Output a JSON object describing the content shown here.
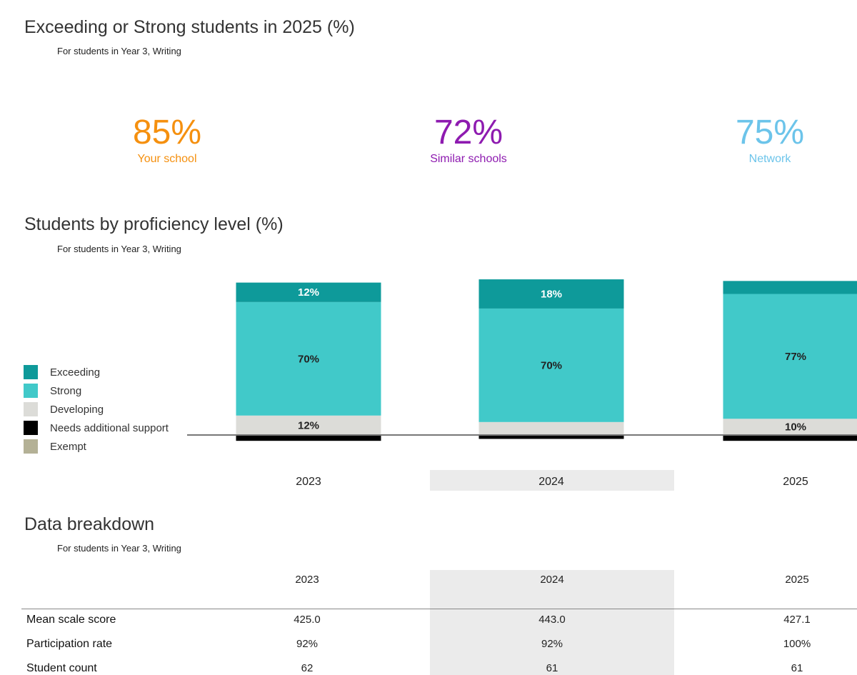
{
  "kpi_section": {
    "title": "Exceeding or Strong students in 2025 (%)",
    "subtitle": "For students in Year 3, Writing",
    "kpis": [
      {
        "value": "85%",
        "label": "Your school",
        "color": "#f5900f"
      },
      {
        "value": "72%",
        "label": "Similar schools",
        "color": "#8e1bb0"
      },
      {
        "value": "75%",
        "label": "Network",
        "color": "#6cc4ea"
      }
    ]
  },
  "proficiency_section": {
    "title": "Students by proficiency level (%)",
    "subtitle": "For students in Year 3, Writing"
  },
  "chart_data": {
    "type": "bar",
    "stacked": true,
    "categories": [
      "2023",
      "2024",
      "2025"
    ],
    "highlighted_category": "2024",
    "legend_position": "left",
    "series": [
      {
        "name": "Exceeding",
        "color": "#0e9a9a",
        "values": [
          12,
          18,
          8
        ],
        "labels": [
          "12%",
          "18%",
          ""
        ]
      },
      {
        "name": "Strong",
        "color": "#41c9c9",
        "values": [
          70,
          70,
          77
        ],
        "labels": [
          "70%",
          "70%",
          "77%"
        ]
      },
      {
        "name": "Developing",
        "color": "#dcdcd8",
        "values": [
          12,
          8,
          10
        ],
        "labels": [
          "12%",
          "",
          "10%"
        ]
      },
      {
        "name": "Needs additional support",
        "color": "#000000",
        "values": [
          6,
          4,
          6
        ],
        "labels": [
          "",
          "",
          ""
        ]
      },
      {
        "name": "Exempt",
        "color": "#b4b196",
        "values": [
          0,
          0,
          0
        ],
        "labels": [
          "",
          "",
          ""
        ]
      }
    ]
  },
  "breakdown_section": {
    "title": "Data breakdown",
    "subtitle": "For students in Year 3, Writing",
    "years": [
      "2023",
      "2024",
      "2025"
    ],
    "rows": [
      {
        "label": "Mean scale score",
        "values": [
          "425.0",
          "443.0",
          "427.1"
        ]
      },
      {
        "label": "Participation rate",
        "values": [
          "92%",
          "92%",
          "100%"
        ]
      },
      {
        "label": "Student count",
        "values": [
          "62",
          "61",
          "61"
        ]
      }
    ]
  }
}
